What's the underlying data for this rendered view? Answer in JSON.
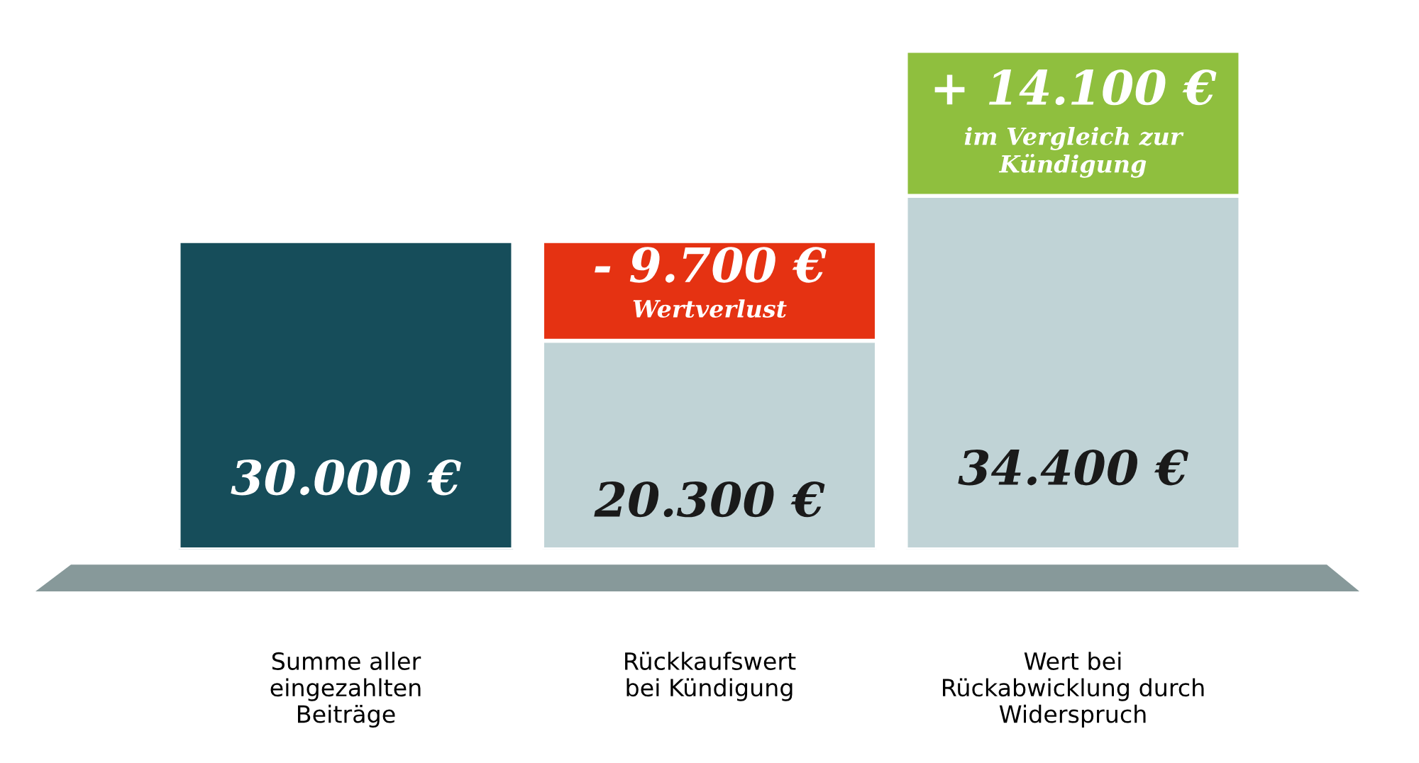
{
  "chart_data": {
    "type": "bar",
    "stacked": true,
    "categories": [
      "Summe aller\neingezahlten\nBeiträge",
      "Rückkaufswert\nbei Kündigung",
      "Wert bei\nRückabwicklung durch\nWiderspruch"
    ],
    "series": [
      {
        "colors": [
          "#164d5a",
          "#c0d3d6",
          "#c0d3d6"
        ],
        "values": [
          30000,
          20300,
          34400
        ],
        "value_labels": [
          "30.000 €",
          "20.300 €",
          "34.400 €"
        ]
      },
      {
        "colors": [
          null,
          "#e53212",
          "#8fbf3e"
        ],
        "values": [
          null,
          9700,
          14100
        ],
        "value_labels": [
          null,
          null,
          "+ 14.100 €"
        ]
      }
    ],
    "annotations": [
      "- 9.700 €",
      "Wertverlust",
      "im Vergleich zur\nKündigung"
    ],
    "ylim": [
      0,
      49000
    ],
    "tick_labels": "x",
    "grid": false,
    "legend": false
  }
}
